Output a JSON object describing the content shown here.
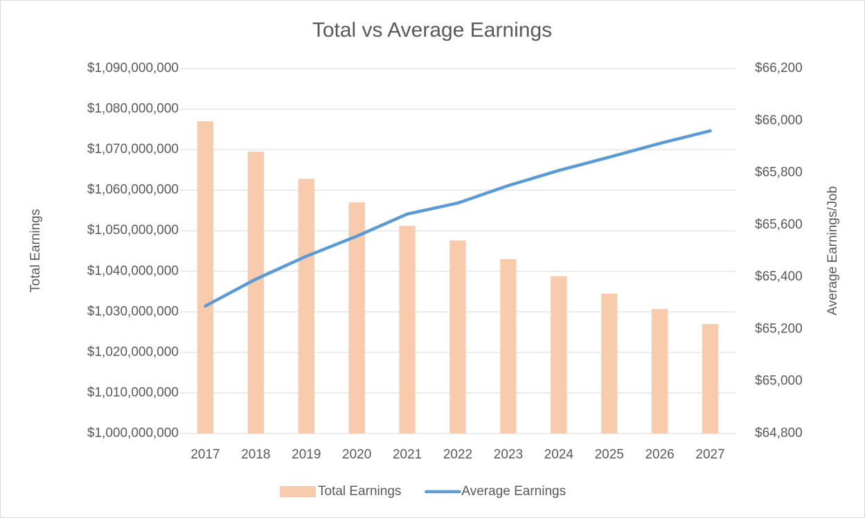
{
  "chart_data": {
    "type": "bar_line",
    "title": "Total vs Average Earnings",
    "categories": [
      "2017",
      "2018",
      "2019",
      "2020",
      "2021",
      "2022",
      "2023",
      "2024",
      "2025",
      "2026",
      "2027"
    ],
    "series": [
      {
        "name": "Total Earnings",
        "type": "bar",
        "color": "#f8cbad",
        "axis": "y",
        "values": [
          1077000000,
          1069500000,
          1062800000,
          1057000000,
          1051200000,
          1047600000,
          1043000000,
          1038800000,
          1034500000,
          1030700000,
          1027000000
        ]
      },
      {
        "name": "Average Earnings",
        "type": "line",
        "color": "#5b9bd5",
        "axis": "y2",
        "values": [
          65289,
          65392,
          65480,
          65557,
          65642,
          65684,
          65751,
          65809,
          65860,
          65913,
          65961
        ]
      }
    ],
    "y_label": "Total Earnings",
    "y2_label": "Average Earnings/Job",
    "ylim": [
      1000000000,
      1090000000
    ],
    "yticks": [
      {
        "value": 1000000000,
        "label": "$1,000,000,000"
      },
      {
        "value": 1010000000,
        "label": "$1,010,000,000"
      },
      {
        "value": 1020000000,
        "label": "$1,020,000,000"
      },
      {
        "value": 1030000000,
        "label": "$1,030,000,000"
      },
      {
        "value": 1040000000,
        "label": "$1,040,000,000"
      },
      {
        "value": 1050000000,
        "label": "$1,050,000,000"
      },
      {
        "value": 1060000000,
        "label": "$1,060,000,000"
      },
      {
        "value": 1070000000,
        "label": "$1,070,000,000"
      },
      {
        "value": 1080000000,
        "label": "$1,080,000,000"
      },
      {
        "value": 1090000000,
        "label": "$1,090,000,000"
      }
    ],
    "y2lim": [
      64800,
      66200
    ],
    "y2ticks": [
      {
        "value": 64800,
        "label": "$64,800"
      },
      {
        "value": 65000,
        "label": "$65,000"
      },
      {
        "value": 65200,
        "label": "$65,200"
      },
      {
        "value": 65400,
        "label": "$65,400"
      },
      {
        "value": 65600,
        "label": "$65,600"
      },
      {
        "value": 65800,
        "label": "$65,800"
      },
      {
        "value": 66000,
        "label": "$66,000"
      },
      {
        "value": 66200,
        "label": "$66,200"
      }
    ],
    "grid": true,
    "legend": "bottom"
  }
}
